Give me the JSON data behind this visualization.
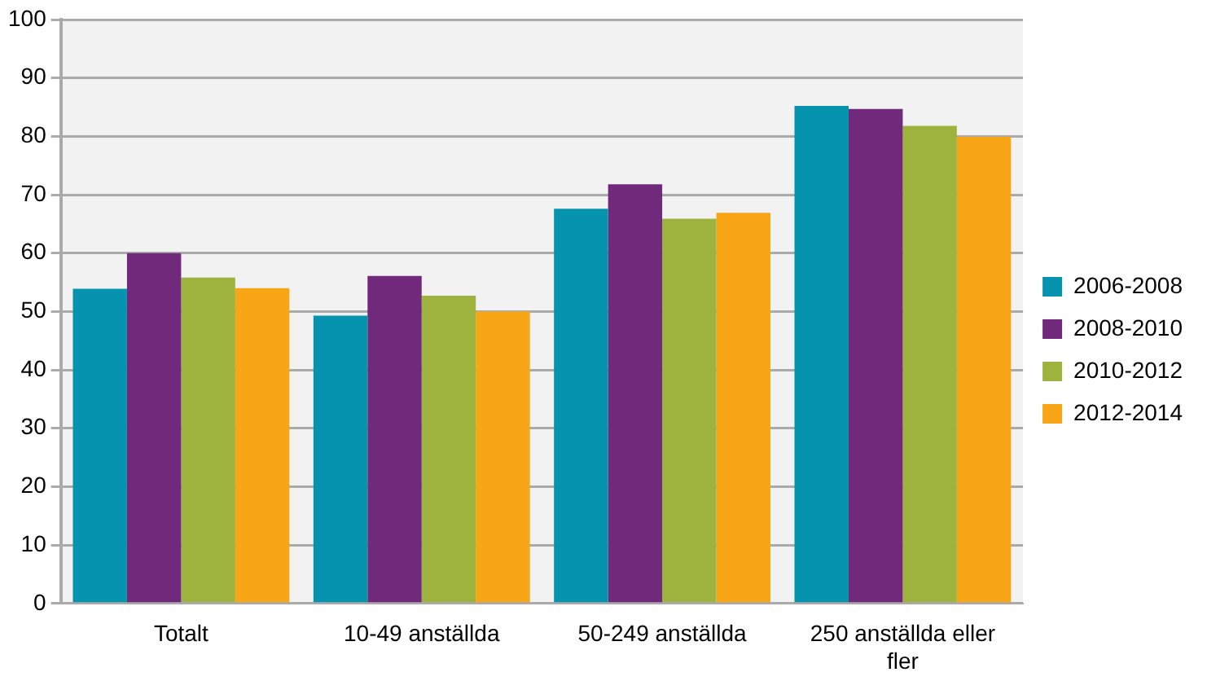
{
  "chart_data": {
    "type": "bar",
    "categories": [
      "Totalt",
      "10-49 anställda",
      "50-249 anställda",
      "250 anställda eller fler"
    ],
    "series": [
      {
        "name": "2006-2008",
        "color": "#0593ad",
        "values": [
          53.9,
          49.3,
          67.6,
          85.2
        ]
      },
      {
        "name": "2008-2010",
        "color": "#712a7b",
        "values": [
          60,
          56.1,
          71.8,
          84.7
        ]
      },
      {
        "name": "2010-2012",
        "color": "#9db33e",
        "values": [
          55.8,
          52.7,
          65.9,
          81.8
        ]
      },
      {
        "name": "2012-2014",
        "color": "#f8a616",
        "values": [
          54,
          50,
          66.9,
          79.9
        ]
      }
    ],
    "ylim": [
      0,
      100
    ],
    "yticks": [
      0,
      10,
      20,
      30,
      40,
      50,
      60,
      70,
      80,
      90,
      100
    ],
    "grid": "y",
    "legend": "right"
  }
}
